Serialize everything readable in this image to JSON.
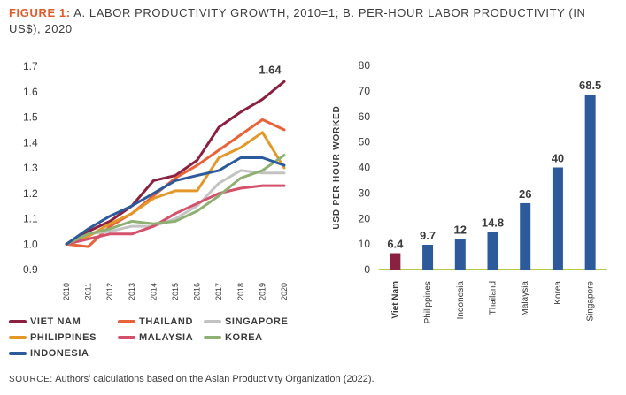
{
  "title": {
    "lead": "FIGURE 1:",
    "text": "A. LABOR PRODUCTIVITY GROWTH, 2010=1; B. PER-HOUR LABOR PRODUCTIVITY (IN US$), 2020"
  },
  "source": {
    "label": "SOURCE:",
    "text": "Authors’ calculations based on the Asian Productivity Organization (2022)."
  },
  "chart_data": [
    {
      "type": "line",
      "title": "Labor productivity growth, 2010=1",
      "xlabel": "",
      "ylabel": "",
      "x": [
        "2010",
        "2011",
        "2012",
        "2013",
        "2014",
        "2015",
        "2016",
        "2017",
        "2018",
        "2019",
        "2020"
      ],
      "ylim": [
        0.9,
        1.7
      ],
      "yticks": [
        "0.9",
        "1.0",
        "1.1",
        "1.2",
        "1.3",
        "1.4",
        "1.5",
        "1.6",
        "1.7"
      ],
      "annotation": "1.64",
      "series": [
        {
          "name": "VIET NAM",
          "color": "#8b2141",
          "values": [
            1.0,
            1.05,
            1.09,
            1.15,
            1.25,
            1.27,
            1.33,
            1.46,
            1.52,
            1.57,
            1.64
          ]
        },
        {
          "name": "THAILAND",
          "color": "#e8623a",
          "values": [
            1.0,
            0.99,
            1.07,
            1.12,
            1.19,
            1.26,
            1.31,
            1.37,
            1.43,
            1.49,
            1.45
          ]
        },
        {
          "name": "SINGAPORE",
          "color": "#c3c3c3",
          "values": [
            1.0,
            1.04,
            1.05,
            1.07,
            1.07,
            1.1,
            1.15,
            1.24,
            1.29,
            1.28,
            1.28
          ]
        },
        {
          "name": "PHILIPPINES",
          "color": "#e3982a",
          "values": [
            1.0,
            1.03,
            1.08,
            1.12,
            1.18,
            1.21,
            1.21,
            1.34,
            1.38,
            1.44,
            1.3
          ]
        },
        {
          "name": "MALAYSIA",
          "color": "#d4506b",
          "values": [
            1.0,
            1.02,
            1.04,
            1.04,
            1.07,
            1.12,
            1.16,
            1.2,
            1.22,
            1.23,
            1.23
          ]
        },
        {
          "name": "KOREA",
          "color": "#8fb073",
          "values": [
            1.0,
            1.04,
            1.06,
            1.09,
            1.08,
            1.09,
            1.13,
            1.19,
            1.26,
            1.29,
            1.35
          ]
        },
        {
          "name": "INDONESIA",
          "color": "#2d5a9a",
          "values": [
            1.0,
            1.06,
            1.11,
            1.15,
            1.2,
            1.25,
            1.27,
            1.29,
            1.34,
            1.34,
            1.31
          ]
        }
      ]
    },
    {
      "type": "bar",
      "title": "Per-hour labor productivity (in US$), 2020",
      "xlabel": "",
      "ylabel": "USD PER HOUR WORKED",
      "ylim": [
        0,
        80
      ],
      "yticks": [
        "0",
        "10",
        "20",
        "30",
        "40",
        "50",
        "60",
        "70",
        "80"
      ],
      "categories": [
        "Viet Nam",
        "Philippines",
        "Indonesia",
        "Thailand",
        "Malaysia",
        "Korea",
        "Singapore"
      ],
      "values": [
        6.4,
        9.7,
        12,
        14.8,
        26,
        40,
        68.5
      ],
      "value_labels": [
        "6.4",
        "9.7",
        "12",
        "14.8",
        "26",
        "40",
        "68.5"
      ],
      "colors": [
        "#8b2141",
        "#2d5a9a",
        "#2d5a9a",
        "#2d5a9a",
        "#2d5a9a",
        "#2d5a9a",
        "#2d5a9a"
      ]
    }
  ]
}
